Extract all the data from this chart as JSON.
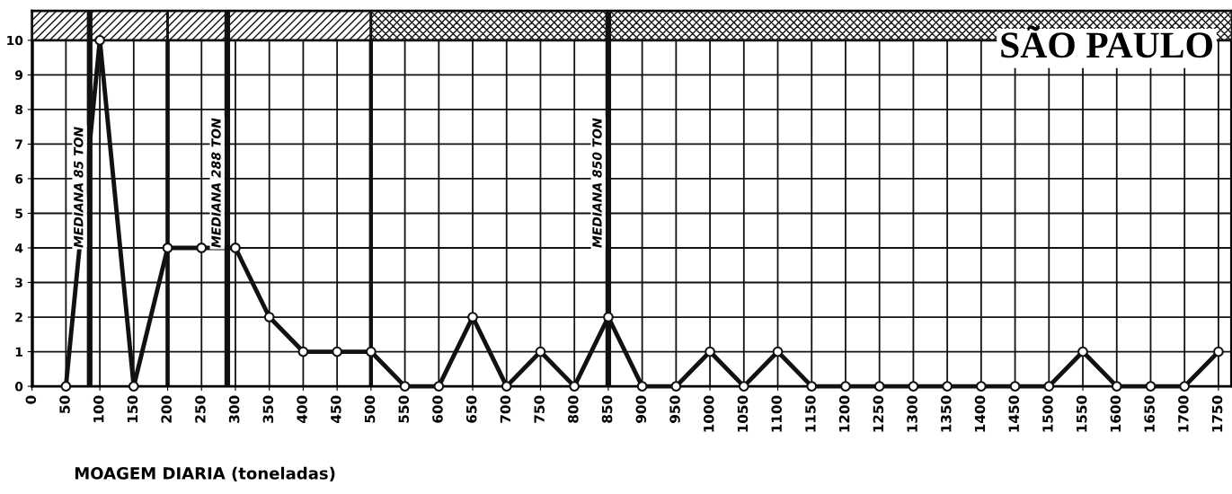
{
  "chart_data": {
    "type": "line",
    "title": "SÃO PAULO",
    "xlabel": "MOAGEM DIARIA (toneladas)",
    "x": [
      50,
      100,
      150,
      200,
      250,
      300,
      350,
      400,
      450,
      500,
      550,
      600,
      650,
      700,
      750,
      800,
      850,
      900,
      950,
      1000,
      1050,
      1100,
      1150,
      1200,
      1250,
      1300,
      1350,
      1400,
      1450,
      1500,
      1550,
      1600,
      1650,
      1700,
      1750
    ],
    "series": [
      {
        "color": "#111111",
        "values": [
          0,
          10,
          0,
          4,
          4,
          4,
          2,
          1,
          1,
          1,
          0,
          0,
          2,
          0,
          1,
          0,
          2,
          0,
          0,
          1,
          0,
          1,
          0,
          0,
          0,
          0,
          0,
          0,
          0,
          0,
          1,
          0,
          0,
          0,
          1
        ]
      }
    ],
    "xlim": [
      0,
      1770
    ],
    "ylim": [
      0,
      10.85
    ],
    "xticks": [
      0,
      50,
      100,
      150,
      200,
      250,
      300,
      350,
      400,
      450,
      500,
      550,
      600,
      650,
      700,
      750,
      800,
      850,
      900,
      950,
      1000,
      1050,
      1100,
      1150,
      1200,
      1250,
      1300,
      1350,
      1400,
      1450,
      1500,
      1550,
      1600,
      1650,
      1700,
      1750
    ],
    "yticks": [
      0,
      1,
      2,
      3,
      4,
      5,
      6,
      7,
      8,
      9,
      10
    ],
    "ref_lines": [
      {
        "axis": "x",
        "value": 85,
        "label": "MEDIANA 85 TON"
      },
      {
        "axis": "x",
        "value": 288,
        "label": "MEDIANA 288 TON"
      },
      {
        "axis": "x",
        "value": 850,
        "label": "MEDIANA 850 TON"
      }
    ],
    "bands": [
      {
        "axis": "x",
        "from": 0,
        "to": 200
      },
      {
        "axis": "x",
        "from": 200,
        "to": 500
      },
      {
        "axis": "x",
        "from": 500,
        "to": 1770
      }
    ],
    "grid": true,
    "marker": "circle",
    "line_style": "solid",
    "legend": false
  }
}
